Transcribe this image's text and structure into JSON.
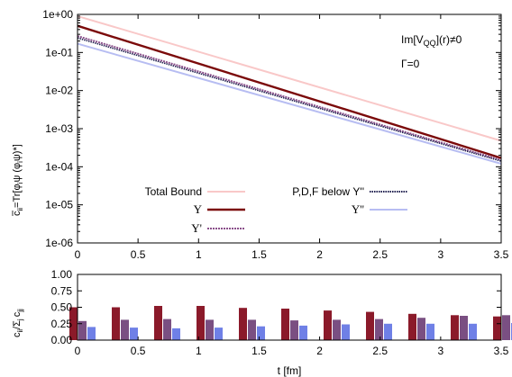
{
  "chart_data": [
    {
      "type": "line",
      "xlim": [
        0,
        3.5
      ],
      "ylim": [
        1e-06,
        1
      ],
      "yscale": "log",
      "ylabel_parts": [
        "c",
        "ii",
        "=Tr[",
        "φ",
        "i",
        "ψ (",
        "φ",
        "i",
        "ψ)*]"
      ],
      "x_ticks": [
        "0",
        "0.5",
        "1",
        "1.5",
        "2",
        "2.5",
        "3",
        "3.5"
      ],
      "y_ticks": [
        "1e-06",
        "1e-05",
        "1e-04",
        "1e-03",
        "1e-02",
        "1e-01",
        "1e+00"
      ],
      "annotations": {
        "line1_parts": [
          "Im[V",
          "QQ",
          "](r)≠0"
        ],
        "line2": "Γ=0"
      },
      "series": [
        {
          "name": "Total Bound",
          "color": "#f9c8c8",
          "x": [
            0,
            3.5
          ],
          "y": [
            0.9,
            0.00048
          ]
        },
        {
          "name": "Υ",
          "color": "#7b0a0a",
          "x": [
            0,
            3.5
          ],
          "y": [
            0.5,
            0.00017
          ]
        },
        {
          "name": "Υ'",
          "color": "#8a4f8a",
          "x": [
            0,
            3.5
          ],
          "y": [
            0.27,
            0.00015
          ]
        },
        {
          "name": "P,D,F below Υ''",
          "color": "#202050",
          "x": [
            0,
            3.5
          ],
          "y": [
            0.24,
            0.00014
          ]
        },
        {
          "name": "Υ''",
          "color": "#b7bdf2",
          "x": [
            0,
            3.5
          ],
          "y": [
            0.17,
            0.00012
          ]
        }
      ]
    },
    {
      "type": "bar",
      "xlim": [
        0,
        3.5
      ],
      "ylim": [
        0,
        1
      ],
      "xlabel": "t [fm]",
      "ylabel_parts": [
        "c",
        "ii",
        "/Σ",
        "j",
        "c",
        "jj"
      ],
      "x_ticks": [
        "0",
        "0.5",
        "1",
        "1.5",
        "2",
        "2.5",
        "3",
        "3.5"
      ],
      "y_ticks": [
        "0.00",
        "0.25",
        "0.50",
        "0.75",
        "1.00"
      ],
      "x": [
        0,
        0.35,
        0.7,
        1.05,
        1.4,
        1.75,
        2.1,
        2.45,
        2.8,
        3.15,
        3.5
      ],
      "series": [
        {
          "name": "Υ",
          "color": "#8b1a2a",
          "values": [
            0.5,
            0.5,
            0.52,
            0.52,
            0.49,
            0.48,
            0.45,
            0.43,
            0.4,
            0.38,
            0.36
          ]
        },
        {
          "name": "Υ'",
          "color": "#7a4f82",
          "values": [
            0.29,
            0.31,
            0.32,
            0.31,
            0.31,
            0.3,
            0.31,
            0.32,
            0.34,
            0.37,
            0.38
          ]
        },
        {
          "name": "Υ''",
          "color": "#6f80e6",
          "values": [
            0.2,
            0.19,
            0.18,
            0.19,
            0.21,
            0.22,
            0.24,
            0.25,
            0.25,
            0.25,
            0.26
          ]
        }
      ]
    }
  ]
}
